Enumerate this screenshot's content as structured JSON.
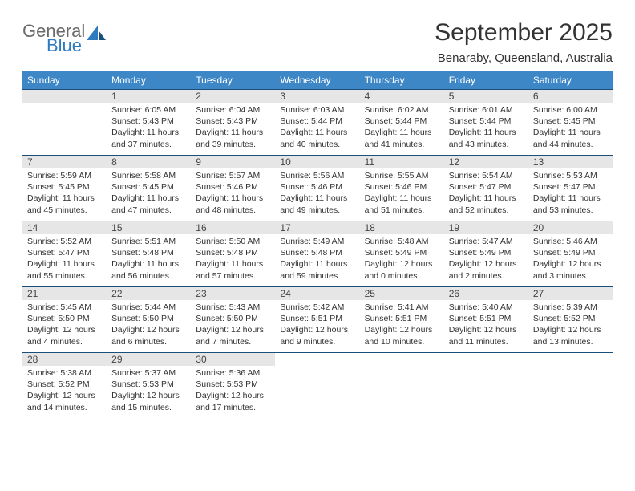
{
  "logo": {
    "general": "General",
    "blue": "Blue"
  },
  "title": "September 2025",
  "location": "Benaraby, Queensland, Australia",
  "colors": {
    "header_bg": "#3d87c7",
    "header_rule": "#1a4f7a",
    "daynum_bg": "#e6e6e6",
    "logo_gray": "#6a6a6a",
    "logo_blue": "#2f7bbf"
  },
  "weekdays": [
    "Sunday",
    "Monday",
    "Tuesday",
    "Wednesday",
    "Thursday",
    "Friday",
    "Saturday"
  ],
  "weeks": [
    [
      {
        "n": "",
        "sr": "",
        "ss": "",
        "dl": ""
      },
      {
        "n": "1",
        "sr": "6:05 AM",
        "ss": "5:43 PM",
        "dl": "11 hours and 37 minutes."
      },
      {
        "n": "2",
        "sr": "6:04 AM",
        "ss": "5:43 PM",
        "dl": "11 hours and 39 minutes."
      },
      {
        "n": "3",
        "sr": "6:03 AM",
        "ss": "5:44 PM",
        "dl": "11 hours and 40 minutes."
      },
      {
        "n": "4",
        "sr": "6:02 AM",
        "ss": "5:44 PM",
        "dl": "11 hours and 41 minutes."
      },
      {
        "n": "5",
        "sr": "6:01 AM",
        "ss": "5:44 PM",
        "dl": "11 hours and 43 minutes."
      },
      {
        "n": "6",
        "sr": "6:00 AM",
        "ss": "5:45 PM",
        "dl": "11 hours and 44 minutes."
      }
    ],
    [
      {
        "n": "7",
        "sr": "5:59 AM",
        "ss": "5:45 PM",
        "dl": "11 hours and 45 minutes."
      },
      {
        "n": "8",
        "sr": "5:58 AM",
        "ss": "5:45 PM",
        "dl": "11 hours and 47 minutes."
      },
      {
        "n": "9",
        "sr": "5:57 AM",
        "ss": "5:46 PM",
        "dl": "11 hours and 48 minutes."
      },
      {
        "n": "10",
        "sr": "5:56 AM",
        "ss": "5:46 PM",
        "dl": "11 hours and 49 minutes."
      },
      {
        "n": "11",
        "sr": "5:55 AM",
        "ss": "5:46 PM",
        "dl": "11 hours and 51 minutes."
      },
      {
        "n": "12",
        "sr": "5:54 AM",
        "ss": "5:47 PM",
        "dl": "11 hours and 52 minutes."
      },
      {
        "n": "13",
        "sr": "5:53 AM",
        "ss": "5:47 PM",
        "dl": "11 hours and 53 minutes."
      }
    ],
    [
      {
        "n": "14",
        "sr": "5:52 AM",
        "ss": "5:47 PM",
        "dl": "11 hours and 55 minutes."
      },
      {
        "n": "15",
        "sr": "5:51 AM",
        "ss": "5:48 PM",
        "dl": "11 hours and 56 minutes."
      },
      {
        "n": "16",
        "sr": "5:50 AM",
        "ss": "5:48 PM",
        "dl": "11 hours and 57 minutes."
      },
      {
        "n": "17",
        "sr": "5:49 AM",
        "ss": "5:48 PM",
        "dl": "11 hours and 59 minutes."
      },
      {
        "n": "18",
        "sr": "5:48 AM",
        "ss": "5:49 PM",
        "dl": "12 hours and 0 minutes."
      },
      {
        "n": "19",
        "sr": "5:47 AM",
        "ss": "5:49 PM",
        "dl": "12 hours and 2 minutes."
      },
      {
        "n": "20",
        "sr": "5:46 AM",
        "ss": "5:49 PM",
        "dl": "12 hours and 3 minutes."
      }
    ],
    [
      {
        "n": "21",
        "sr": "5:45 AM",
        "ss": "5:50 PM",
        "dl": "12 hours and 4 minutes."
      },
      {
        "n": "22",
        "sr": "5:44 AM",
        "ss": "5:50 PM",
        "dl": "12 hours and 6 minutes."
      },
      {
        "n": "23",
        "sr": "5:43 AM",
        "ss": "5:50 PM",
        "dl": "12 hours and 7 minutes."
      },
      {
        "n": "24",
        "sr": "5:42 AM",
        "ss": "5:51 PM",
        "dl": "12 hours and 9 minutes."
      },
      {
        "n": "25",
        "sr": "5:41 AM",
        "ss": "5:51 PM",
        "dl": "12 hours and 10 minutes."
      },
      {
        "n": "26",
        "sr": "5:40 AM",
        "ss": "5:51 PM",
        "dl": "12 hours and 11 minutes."
      },
      {
        "n": "27",
        "sr": "5:39 AM",
        "ss": "5:52 PM",
        "dl": "12 hours and 13 minutes."
      }
    ],
    [
      {
        "n": "28",
        "sr": "5:38 AM",
        "ss": "5:52 PM",
        "dl": "12 hours and 14 minutes."
      },
      {
        "n": "29",
        "sr": "5:37 AM",
        "ss": "5:53 PM",
        "dl": "12 hours and 15 minutes."
      },
      {
        "n": "30",
        "sr": "5:36 AM",
        "ss": "5:53 PM",
        "dl": "12 hours and 17 minutes."
      },
      {
        "n": "",
        "sr": "",
        "ss": "",
        "dl": ""
      },
      {
        "n": "",
        "sr": "",
        "ss": "",
        "dl": ""
      },
      {
        "n": "",
        "sr": "",
        "ss": "",
        "dl": ""
      },
      {
        "n": "",
        "sr": "",
        "ss": "",
        "dl": ""
      }
    ]
  ],
  "labels": {
    "sunrise": "Sunrise:",
    "sunset": "Sunset:",
    "daylight": "Daylight:"
  }
}
